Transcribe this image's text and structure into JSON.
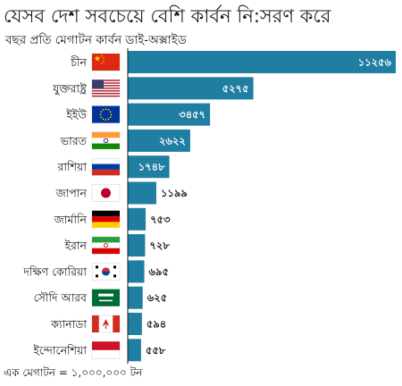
{
  "title": "যেসব দেশ সবচেয়ে বেশি কার্বন নি:সরণ করে",
  "subtitle": "বছর প্রতি মেগাটন কার্বন ডাই-অক্সাইড",
  "footnote": "এক মেগাটন = ১,০০০,০০০ টন",
  "chart_data": {
    "type": "bar",
    "orientation": "horizontal",
    "title": "যেসব দেশ সবচেয়ে বেশি কার্বন নি:সরণ করে",
    "subtitle": "বছর প্রতি মেগাটন কার্বন ডাই-অক্সাইড",
    "categories": [
      "চীন",
      "যুক্তরাষ্ট্র",
      "ইইউ",
      "ভারত",
      "রাশিয়া",
      "জাপান",
      "জার্মানি",
      "ইরান",
      "দক্ষিণ কোরিয়া",
      "সৌদি আরব",
      "ক্যানাডা",
      "ইন্দোনেশিয়া"
    ],
    "values": [
      11256,
      5275,
      3457,
      2622,
      1748,
      1199,
      753,
      728,
      695,
      625,
      594,
      558
    ],
    "value_labels": [
      "১১২৫৬",
      "৫২৭৫",
      "৩৪৫৭",
      "২৬২২",
      "১৭৪৮",
      "১১৯৯",
      "৭৫৩",
      "৭২৮",
      "৬৯৫",
      "৬২৫",
      "৫৯৪",
      "৫৫৮"
    ],
    "flags": [
      "china-flag",
      "usa-flag",
      "eu-flag",
      "india-flag",
      "russia-flag",
      "japan-flag",
      "germany-flag",
      "iran-flag",
      "south-korea-flag",
      "saudi-arabia-flag",
      "canada-flag",
      "indonesia-flag"
    ],
    "bar_color": "#1f7ea1",
    "xlim": [
      0,
      11256
    ],
    "grid": false,
    "legend": "none"
  }
}
